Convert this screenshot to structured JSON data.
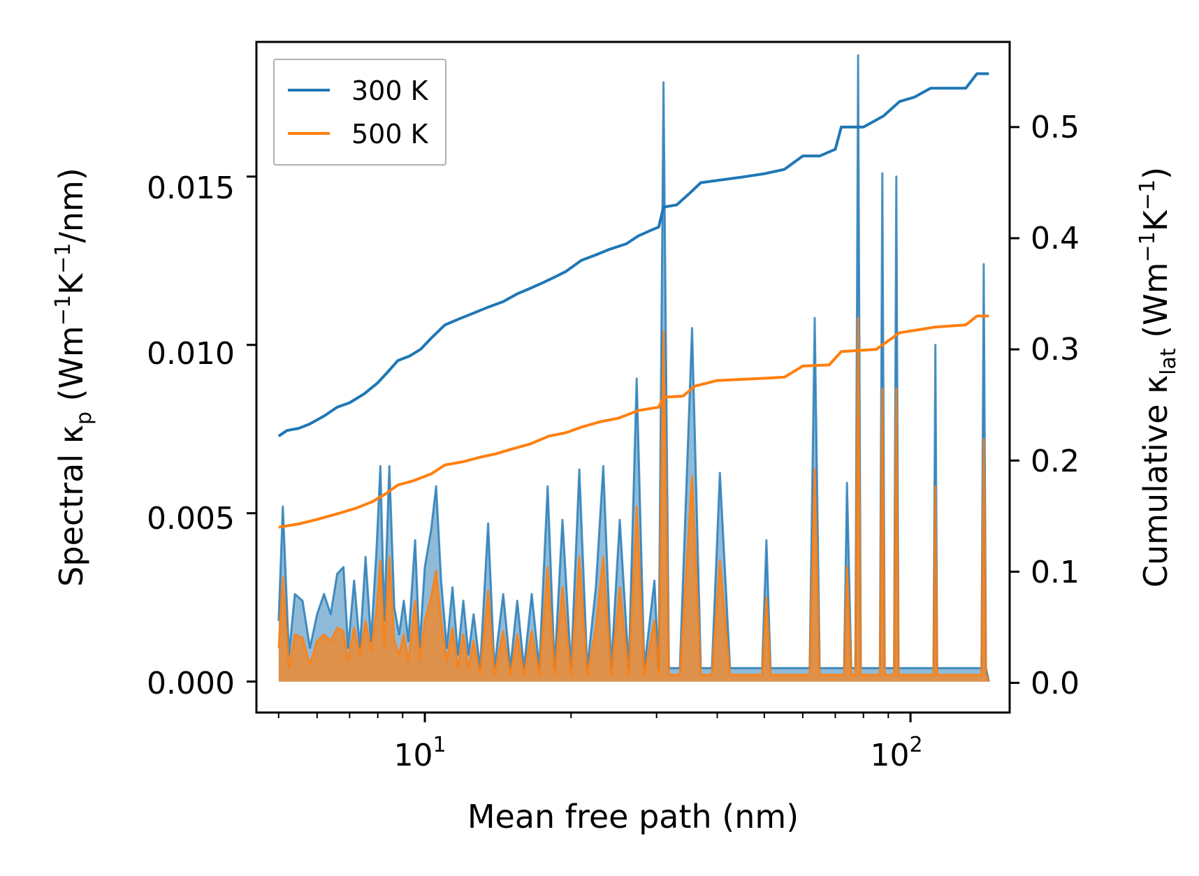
{
  "chart_data": {
    "type": "line",
    "xscale": "log",
    "xlim": [
      4.5,
      160
    ],
    "xlabel": "Mean free path (nm)",
    "xticks": [
      {
        "value": 10,
        "base": "10",
        "exp": "1"
      },
      {
        "value": 100,
        "base": "10",
        "exp": "2"
      }
    ],
    "ylabel_left": {
      "prefix": "Spectral κ",
      "sub": "p",
      "unit_open": " (Wm",
      "exp1": "−1",
      "mid": "K",
      "exp2": "−1",
      "unit_close": "/nm)"
    },
    "ylim_left": [
      -0.00092,
      0.019
    ],
    "yticks_left": [
      "0.000",
      "0.005",
      "0.010",
      "0.015"
    ],
    "ylabel_right": {
      "prefix": "Cumulative κ",
      "sub": "lat",
      "unit_open": " (Wm",
      "exp1": "−1",
      "mid": "K",
      "exp2": "−1",
      "unit_close": ")"
    },
    "ylim_right": [
      -0.0267,
      0.5766
    ],
    "yticks_right": [
      "0.0",
      "0.1",
      "0.2",
      "0.3",
      "0.4",
      "0.5"
    ],
    "legend": {
      "position": "top-left",
      "entries": [
        "300 K",
        "500 K"
      ]
    },
    "colors": {
      "300 K": "#1f77b4",
      "500 K": "#ff7f0e",
      "fill_300": "#1f77b4",
      "fill_500": "#ff7f0e"
    },
    "series_cumulative": [
      {
        "name": "300 K",
        "axis": "right",
        "points": [
          [
            5.0,
            0.222
          ],
          [
            5.2,
            0.227
          ],
          [
            5.5,
            0.229
          ],
          [
            5.8,
            0.233
          ],
          [
            6.2,
            0.24
          ],
          [
            6.6,
            0.248
          ],
          [
            7.0,
            0.252
          ],
          [
            7.5,
            0.26
          ],
          [
            8.0,
            0.27
          ],
          [
            8.4,
            0.28
          ],
          [
            8.8,
            0.29
          ],
          [
            9.3,
            0.294
          ],
          [
            9.8,
            0.3
          ],
          [
            10.3,
            0.31
          ],
          [
            11.0,
            0.322
          ],
          [
            11.7,
            0.327
          ],
          [
            12.5,
            0.332
          ],
          [
            13.5,
            0.338
          ],
          [
            14.5,
            0.343
          ],
          [
            15.5,
            0.35
          ],
          [
            16.5,
            0.355
          ],
          [
            17.5,
            0.36
          ],
          [
            18.5,
            0.365
          ],
          [
            19.5,
            0.37
          ],
          [
            21.0,
            0.38
          ],
          [
            22.5,
            0.385
          ],
          [
            24.0,
            0.39
          ],
          [
            26.0,
            0.395
          ],
          [
            27.5,
            0.402
          ],
          [
            29.5,
            0.408
          ],
          [
            30.3,
            0.41
          ],
          [
            31.0,
            0.428
          ],
          [
            33.0,
            0.43
          ],
          [
            35.0,
            0.44
          ],
          [
            37.0,
            0.45
          ],
          [
            40.0,
            0.452
          ],
          [
            45.0,
            0.455
          ],
          [
            50.0,
            0.458
          ],
          [
            55.0,
            0.462
          ],
          [
            60.0,
            0.474
          ],
          [
            65.0,
            0.474
          ],
          [
            70.0,
            0.48
          ],
          [
            72.0,
            0.5
          ],
          [
            80.0,
            0.5
          ],
          [
            88.0,
            0.51
          ],
          [
            95.0,
            0.523
          ],
          [
            102.0,
            0.527
          ],
          [
            110.0,
            0.535
          ],
          [
            130.0,
            0.535
          ],
          [
            137.0,
            0.548
          ],
          [
            145.0,
            0.548
          ]
        ]
      },
      {
        "name": "500 K",
        "axis": "right",
        "points": [
          [
            5.0,
            0.14
          ],
          [
            5.5,
            0.143
          ],
          [
            6.0,
            0.147
          ],
          [
            6.6,
            0.152
          ],
          [
            7.2,
            0.157
          ],
          [
            7.8,
            0.163
          ],
          [
            8.3,
            0.17
          ],
          [
            8.8,
            0.178
          ],
          [
            9.5,
            0.182
          ],
          [
            10.3,
            0.188
          ],
          [
            11.0,
            0.196
          ],
          [
            12.0,
            0.199
          ],
          [
            13.0,
            0.203
          ],
          [
            14.0,
            0.206
          ],
          [
            15.0,
            0.21
          ],
          [
            16.5,
            0.215
          ],
          [
            18.0,
            0.222
          ],
          [
            19.5,
            0.225
          ],
          [
            21.0,
            0.23
          ],
          [
            23.0,
            0.235
          ],
          [
            25.0,
            0.238
          ],
          [
            27.5,
            0.245
          ],
          [
            30.3,
            0.248
          ],
          [
            31.0,
            0.257
          ],
          [
            34.0,
            0.258
          ],
          [
            36.0,
            0.267
          ],
          [
            40.0,
            0.272
          ],
          [
            50.0,
            0.274
          ],
          [
            55.0,
            0.275
          ],
          [
            60.0,
            0.285
          ],
          [
            68.0,
            0.286
          ],
          [
            72.0,
            0.298
          ],
          [
            85.0,
            0.3
          ],
          [
            95.0,
            0.315
          ],
          [
            105.0,
            0.318
          ],
          [
            112.0,
            0.32
          ],
          [
            130.0,
            0.322
          ],
          [
            137.0,
            0.33
          ],
          [
            145.0,
            0.33
          ]
        ]
      }
    ],
    "series_spectral": [
      {
        "name": "300 K",
        "axis": "left",
        "points": [
          [
            5.0,
            0.0018
          ],
          [
            5.1,
            0.0052
          ],
          [
            5.25,
            0.0008
          ],
          [
            5.4,
            0.0026
          ],
          [
            5.6,
            0.0024
          ],
          [
            5.8,
            0.001
          ],
          [
            6.0,
            0.002
          ],
          [
            6.2,
            0.0026
          ],
          [
            6.4,
            0.002
          ],
          [
            6.6,
            0.0032
          ],
          [
            6.8,
            0.0034
          ],
          [
            6.95,
            0.001
          ],
          [
            7.15,
            0.003
          ],
          [
            7.35,
            0.001
          ],
          [
            7.55,
            0.0037
          ],
          [
            7.75,
            0.0012
          ],
          [
            7.95,
            0.0039
          ],
          [
            8.1,
            0.0064
          ],
          [
            8.25,
            0.0018
          ],
          [
            8.45,
            0.0064
          ],
          [
            8.65,
            0.0022
          ],
          [
            8.85,
            0.0014
          ],
          [
            9.05,
            0.0024
          ],
          [
            9.25,
            0.0012
          ],
          [
            9.55,
            0.0042
          ],
          [
            9.75,
            0.001
          ],
          [
            10.0,
            0.0034
          ],
          [
            10.3,
            0.0045
          ],
          [
            10.55,
            0.0058
          ],
          [
            10.8,
            0.003
          ],
          [
            11.1,
            0.001
          ],
          [
            11.4,
            0.0028
          ],
          [
            11.7,
            0.0008
          ],
          [
            12.0,
            0.0024
          ],
          [
            12.3,
            0.0008
          ],
          [
            12.6,
            0.002
          ],
          [
            13.0,
            0.0004
          ],
          [
            13.5,
            0.0047
          ],
          [
            13.9,
            0.0004
          ],
          [
            14.5,
            0.0026
          ],
          [
            15.0,
            0.0004
          ],
          [
            15.5,
            0.0024
          ],
          [
            16.0,
            0.0004
          ],
          [
            16.6,
            0.0026
          ],
          [
            17.2,
            0.0004
          ],
          [
            17.9,
            0.0058
          ],
          [
            18.5,
            0.0004
          ],
          [
            19.2,
            0.0048
          ],
          [
            20.0,
            0.0004
          ],
          [
            20.8,
            0.0063
          ],
          [
            21.6,
            0.0004
          ],
          [
            22.5,
            0.0028
          ],
          [
            23.3,
            0.0064
          ],
          [
            24.2,
            0.0004
          ],
          [
            25.2,
            0.0048
          ],
          [
            26.3,
            0.0004
          ],
          [
            27.3,
            0.009
          ],
          [
            28.3,
            0.0004
          ],
          [
            29.7,
            0.003
          ],
          [
            30.3,
            0.0004
          ],
          [
            31.0,
            0.0178
          ],
          [
            31.8,
            0.0004
          ],
          [
            33.5,
            0.0004
          ],
          [
            35.5,
            0.0105
          ],
          [
            37.0,
            0.0004
          ],
          [
            39.0,
            0.0004
          ],
          [
            40.5,
            0.0062
          ],
          [
            42.5,
            0.0004
          ],
          [
            49.5,
            0.0004
          ],
          [
            50.5,
            0.0042
          ],
          [
            51.5,
            0.0004
          ],
          [
            62.0,
            0.0004
          ],
          [
            63.5,
            0.0108
          ],
          [
            65.0,
            0.0004
          ],
          [
            73.0,
            0.0004
          ],
          [
            74.0,
            0.0059
          ],
          [
            75.5,
            0.0004
          ],
          [
            77.0,
            0.0004
          ],
          [
            78.0,
            0.0186
          ],
          [
            79.0,
            0.0004
          ],
          [
            86.5,
            0.0004
          ],
          [
            87.5,
            0.0151
          ],
          [
            88.5,
            0.0004
          ],
          [
            92.5,
            0.0004
          ],
          [
            93.5,
            0.015
          ],
          [
            94.5,
            0.0004
          ],
          [
            111.5,
            0.0004
          ],
          [
            112.5,
            0.01
          ],
          [
            113.5,
            0.0004
          ],
          [
            140.0,
            0.0004
          ],
          [
            141.5,
            0.0124
          ],
          [
            143.0,
            0.0004
          ],
          [
            145.0,
            0.0
          ]
        ]
      },
      {
        "name": "500 K",
        "axis": "left",
        "points": [
          [
            5.0,
            0.001
          ],
          [
            5.1,
            0.0031
          ],
          [
            5.25,
            0.0004
          ],
          [
            5.4,
            0.0014
          ],
          [
            5.6,
            0.0013
          ],
          [
            5.8,
            0.0005
          ],
          [
            6.0,
            0.0012
          ],
          [
            6.2,
            0.0014
          ],
          [
            6.4,
            0.0012
          ],
          [
            6.6,
            0.0016
          ],
          [
            6.8,
            0.0015
          ],
          [
            6.95,
            0.0006
          ],
          [
            7.15,
            0.0016
          ],
          [
            7.35,
            0.0008
          ],
          [
            7.55,
            0.0018
          ],
          [
            7.75,
            0.0009
          ],
          [
            7.95,
            0.0021
          ],
          [
            8.1,
            0.0036
          ],
          [
            8.25,
            0.001
          ],
          [
            8.45,
            0.0037
          ],
          [
            8.65,
            0.0012
          ],
          [
            8.85,
            0.0008
          ],
          [
            9.05,
            0.0014
          ],
          [
            9.25,
            0.0006
          ],
          [
            9.55,
            0.0024
          ],
          [
            9.75,
            0.0006
          ],
          [
            10.0,
            0.0018
          ],
          [
            10.3,
            0.0025
          ],
          [
            10.55,
            0.0033
          ],
          [
            10.8,
            0.0018
          ],
          [
            11.1,
            0.0006
          ],
          [
            11.4,
            0.0016
          ],
          [
            11.7,
            0.0004
          ],
          [
            12.0,
            0.0014
          ],
          [
            12.3,
            0.0004
          ],
          [
            12.6,
            0.0012
          ],
          [
            13.0,
            0.0002
          ],
          [
            13.5,
            0.0027
          ],
          [
            13.9,
            0.0002
          ],
          [
            14.5,
            0.0015
          ],
          [
            15.0,
            0.0002
          ],
          [
            15.5,
            0.0014
          ],
          [
            16.0,
            0.0002
          ],
          [
            16.6,
            0.0015
          ],
          [
            17.2,
            0.0002
          ],
          [
            17.9,
            0.0034
          ],
          [
            18.5,
            0.0002
          ],
          [
            19.2,
            0.0028
          ],
          [
            20.0,
            0.0002
          ],
          [
            20.8,
            0.0037
          ],
          [
            21.6,
            0.0002
          ],
          [
            22.5,
            0.0016
          ],
          [
            23.3,
            0.0037
          ],
          [
            24.2,
            0.0002
          ],
          [
            25.2,
            0.0028
          ],
          [
            26.3,
            0.0002
          ],
          [
            27.3,
            0.0052
          ],
          [
            28.3,
            0.0002
          ],
          [
            29.7,
            0.0018
          ],
          [
            30.3,
            0.0002
          ],
          [
            31.0,
            0.0104
          ],
          [
            31.8,
            0.0002
          ],
          [
            33.5,
            0.0002
          ],
          [
            35.5,
            0.0061
          ],
          [
            37.0,
            0.0002
          ],
          [
            39.0,
            0.0002
          ],
          [
            40.5,
            0.0036
          ],
          [
            42.5,
            0.0002
          ],
          [
            49.5,
            0.0002
          ],
          [
            50.5,
            0.0025
          ],
          [
            51.5,
            0.0002
          ],
          [
            62.0,
            0.0002
          ],
          [
            63.5,
            0.0063
          ],
          [
            65.0,
            0.0002
          ],
          [
            73.0,
            0.0002
          ],
          [
            74.0,
            0.0034
          ],
          [
            75.5,
            0.0002
          ],
          [
            77.0,
            0.0002
          ],
          [
            78.0,
            0.0108
          ],
          [
            79.0,
            0.0002
          ],
          [
            86.5,
            0.0002
          ],
          [
            87.5,
            0.0087
          ],
          [
            88.5,
            0.0002
          ],
          [
            92.5,
            0.0002
          ],
          [
            93.5,
            0.0087
          ],
          [
            94.5,
            0.0002
          ],
          [
            111.5,
            0.0002
          ],
          [
            112.5,
            0.0058
          ],
          [
            113.5,
            0.0002
          ],
          [
            140.0,
            0.0002
          ],
          [
            141.5,
            0.0072
          ],
          [
            143.0,
            0.0002
          ],
          [
            145.0,
            0.0
          ]
        ]
      }
    ]
  }
}
